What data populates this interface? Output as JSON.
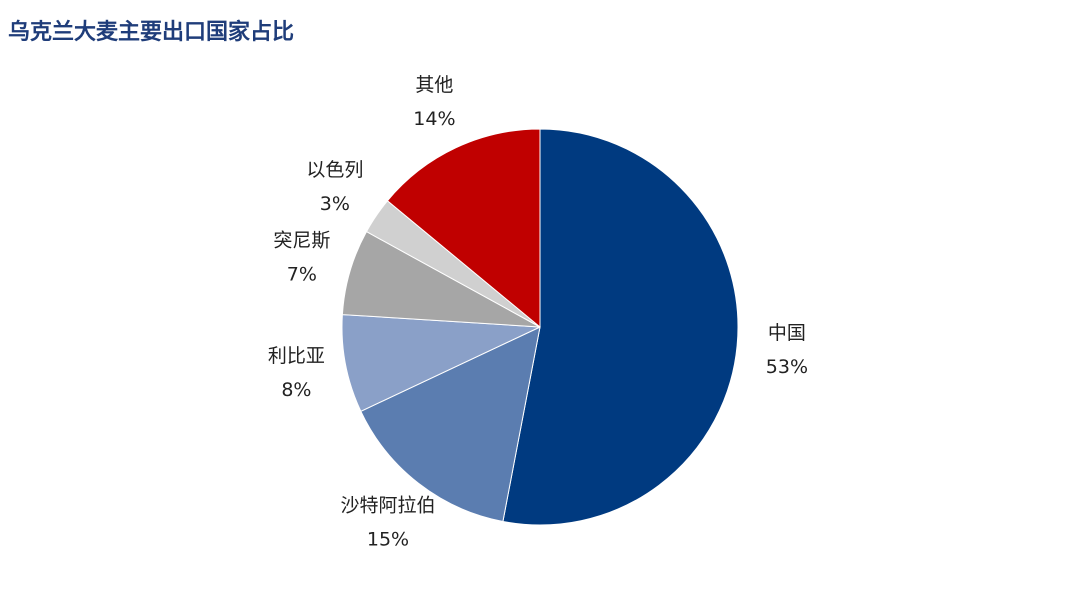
{
  "chart_data": {
    "type": "pie",
    "title": "乌克兰大麦主要出口国家占比",
    "categories": [
      "中国",
      "沙特阿拉伯",
      "利比亚",
      "突尼斯",
      "以色列",
      "其他"
    ],
    "values": [
      53,
      15,
      8,
      7,
      3,
      14
    ],
    "value_labels": [
      "53%",
      "15%",
      "8%",
      "7%",
      "3%",
      "14%"
    ],
    "colors": [
      "#003a80",
      "#5b7db0",
      "#8aa0c8",
      "#a6a6a6",
      "#d0d0d0",
      "#c00000"
    ]
  }
}
